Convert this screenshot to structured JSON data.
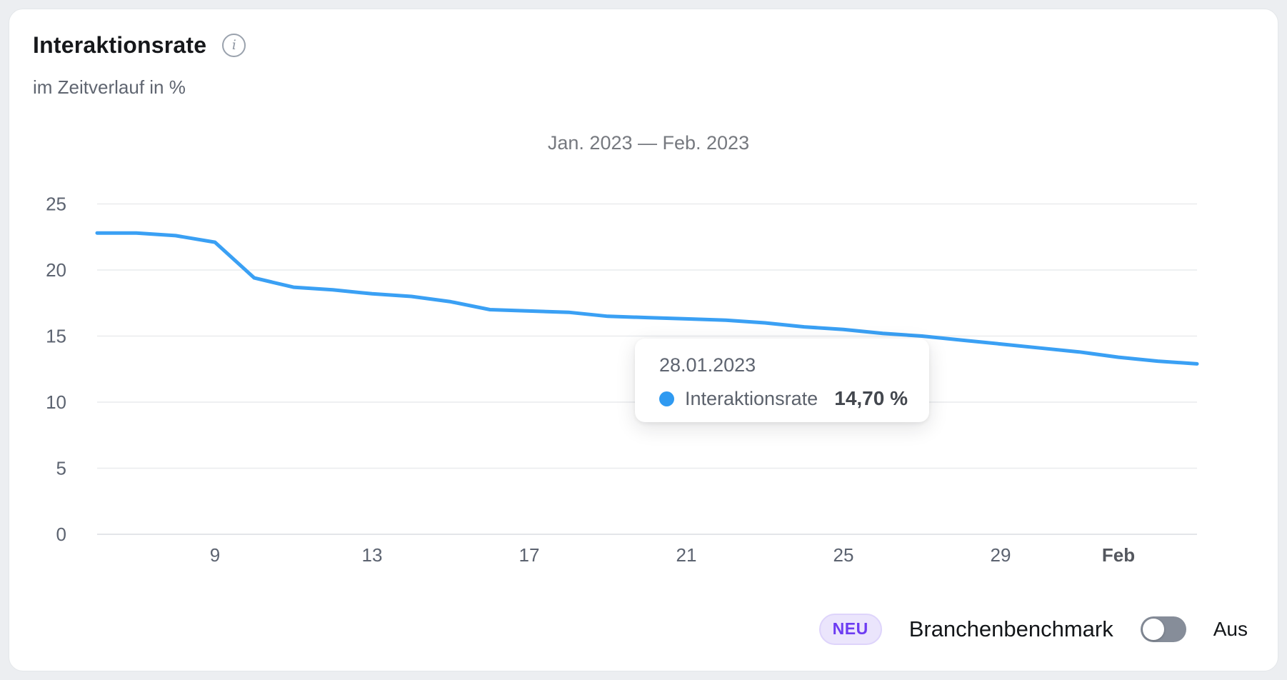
{
  "header": {
    "title": "Interaktionsrate",
    "info_icon": "i",
    "subtitle": "im Zeitverlauf in %"
  },
  "chart_data": {
    "type": "line",
    "title": "Jan. 2023 — Feb. 2023",
    "xlabel": "",
    "ylabel": "",
    "unit": "%",
    "ylim": [
      0,
      26.5
    ],
    "grid": true,
    "legend_position": "none",
    "y_ticks": [
      0,
      5,
      10,
      15,
      20,
      25
    ],
    "x_ticks": [
      {
        "label": "9",
        "index": 3,
        "bold": false
      },
      {
        "label": "13",
        "index": 7,
        "bold": false
      },
      {
        "label": "17",
        "index": 11,
        "bold": false
      },
      {
        "label": "21",
        "index": 15,
        "bold": false
      },
      {
        "label": "25",
        "index": 19,
        "bold": false
      },
      {
        "label": "29",
        "index": 23,
        "bold": false
      },
      {
        "label": "Feb",
        "index": 26,
        "bold": true
      }
    ],
    "series": [
      {
        "name": "Interaktionsrate",
        "color": "#3aa0f4",
        "dates": [
          "06.01.2023",
          "07.01.2023",
          "08.01.2023",
          "09.01.2023",
          "10.01.2023",
          "11.01.2023",
          "12.01.2023",
          "13.01.2023",
          "14.01.2023",
          "15.01.2023",
          "16.01.2023",
          "17.01.2023",
          "18.01.2023",
          "19.01.2023",
          "20.01.2023",
          "21.01.2023",
          "22.01.2023",
          "23.01.2023",
          "24.01.2023",
          "25.01.2023",
          "26.01.2023",
          "27.01.2023",
          "28.01.2023",
          "29.01.2023",
          "30.01.2023",
          "31.01.2023",
          "01.02.2023",
          "02.02.2023",
          "03.02.2023"
        ],
        "values": [
          22.8,
          22.8,
          22.6,
          22.1,
          19.4,
          18.7,
          18.5,
          18.2,
          18.0,
          17.6,
          17.0,
          16.9,
          16.8,
          16.5,
          16.4,
          16.3,
          16.2,
          16.0,
          15.7,
          15.5,
          15.2,
          15.0,
          14.7,
          14.4,
          14.1,
          13.8,
          13.4,
          13.1,
          12.9
        ]
      }
    ]
  },
  "tooltip": {
    "date": "28.01.2023",
    "series_label": "Interaktionsrate",
    "value": "14,70 %",
    "value_numeric": 14.7
  },
  "footer": {
    "badge_label": "NEU",
    "benchmark_label": "Branchenbenchmark",
    "toggle_state": "off",
    "toggle_state_label": "Aus"
  },
  "colors": {
    "page_bg": "#eceef1",
    "card_bg": "#ffffff",
    "card_border": "#e4e7ea",
    "title_text": "#16181b",
    "subtitle_text": "#5f6570",
    "period_text": "#76797f",
    "grid_line": "#e9ebee",
    "axis_line": "#e3e5e9",
    "axis_text": "#5c6370",
    "axis_text_bold": "#54575e",
    "line": "#3aa0f4",
    "tooltip_dot": "#2f9af1",
    "tooltip_date": "#5e6470",
    "tooltip_label": "#5c626c",
    "tooltip_value": "#43474e",
    "badge_bg": "#ebe5fc",
    "badge_border": "#ded4fb",
    "badge_text": "#6d3cf2",
    "footer_text": "#131619",
    "toggle_track": "#868d99",
    "toggle_knob": "#ffffff"
  }
}
